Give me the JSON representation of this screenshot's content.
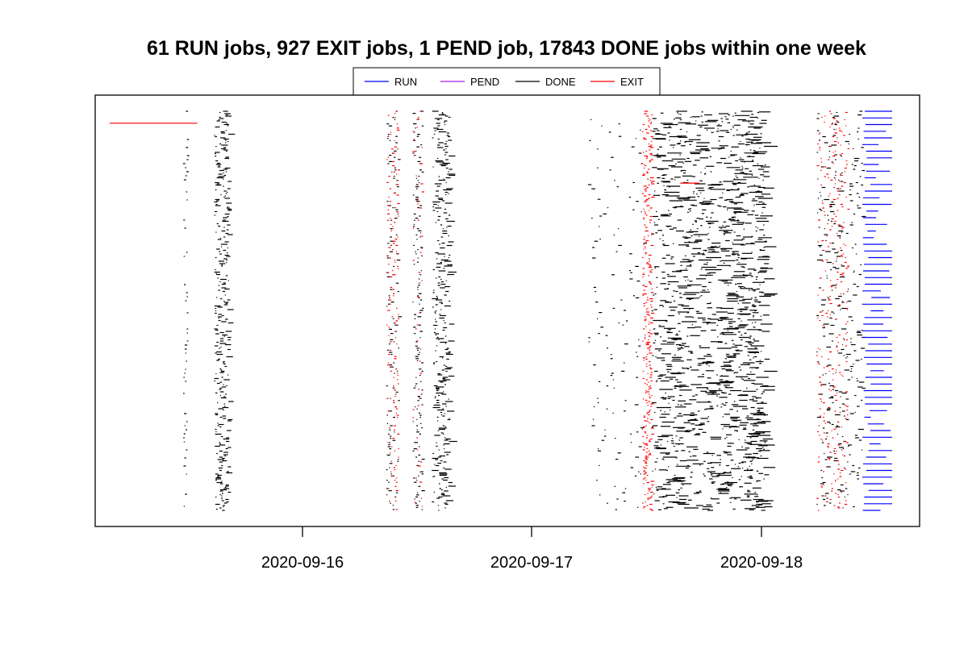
{
  "chart_data": {
    "type": "timeline",
    "title": "61 RUN jobs, 927 EXIT jobs, 1 PEND job, 17843 DONE jobs within one week",
    "xlabel": "",
    "ylabel": "",
    "x_axis": {
      "type": "date",
      "range": [
        "2020-09-15T00:00",
        "2020-09-18T17:50"
      ],
      "ticks": [
        "2020-09-16",
        "2020-09-17",
        "2020-09-18"
      ]
    },
    "grid": false,
    "legend": {
      "placement": "top-center",
      "entries": [
        {
          "label": "RUN",
          "color": "#0000ff"
        },
        {
          "label": "PEND",
          "color": "#a020f0"
        },
        {
          "label": "DONE",
          "color": "#000000"
        },
        {
          "label": "EXIT",
          "color": "#ff0000"
        }
      ]
    },
    "counts": {
      "RUN": 61,
      "EXIT": 927,
      "PEND": 1,
      "DONE": 17843
    },
    "highlighted_jobs": [
      {
        "status": "EXIT",
        "start": "2020-09-15T03:50",
        "end": "2020-09-15T13:00",
        "row": 0.03
      },
      {
        "status": "EXIT",
        "start": "2020-09-17T15:30",
        "end": "2020-09-17T17:30",
        "row": 0.18
      }
    ],
    "activity_bands": [
      {
        "status": "DONE",
        "start": "2020-09-15T11:30",
        "end": "2020-09-15T11:55",
        "density": "sparse",
        "max_duration_h": 0.2
      },
      {
        "status": "DONE",
        "start": "2020-09-15T14:45",
        "end": "2020-09-15T16:15",
        "density": "dense",
        "max_duration_h": 0.6
      },
      {
        "status": "DONE",
        "start": "2020-09-16T08:45",
        "end": "2020-09-16T10:00",
        "density": "medium",
        "max_duration_h": 0.3
      },
      {
        "status": "EXIT",
        "start": "2020-09-16T08:45",
        "end": "2020-09-16T10:00",
        "density": "medium",
        "max_duration_h": 0.2
      },
      {
        "status": "DONE",
        "start": "2020-09-16T11:30",
        "end": "2020-09-16T12:30",
        "density": "medium",
        "max_duration_h": 0.3
      },
      {
        "status": "EXIT",
        "start": "2020-09-16T11:30",
        "end": "2020-09-16T12:30",
        "density": "sparse",
        "max_duration_h": 0.2
      },
      {
        "status": "DONE",
        "start": "2020-09-16T13:30",
        "end": "2020-09-16T15:20",
        "density": "dense",
        "max_duration_h": 0.8
      },
      {
        "status": "DONE",
        "start": "2020-09-17T05:45",
        "end": "2020-09-17T11:40",
        "density": "medium",
        "max_duration_h": 0.3
      },
      {
        "status": "EXIT",
        "start": "2020-09-17T11:30",
        "end": "2020-09-17T12:30",
        "density": "dense",
        "max_duration_h": 0.3
      },
      {
        "status": "DONE",
        "start": "2020-09-17T12:30",
        "end": "2020-09-17T18:50",
        "density": "very-dense",
        "max_duration_h": 1.5
      },
      {
        "status": "DONE",
        "start": "2020-09-17T19:15",
        "end": "2020-09-18T00:20",
        "density": "very-dense",
        "max_duration_h": 1.5
      },
      {
        "status": "DONE",
        "start": "2020-09-18T05:45",
        "end": "2020-09-18T10:30",
        "density": "dense",
        "max_duration_h": 0.5
      },
      {
        "status": "EXIT",
        "start": "2020-09-18T05:45",
        "end": "2020-09-18T09:00",
        "density": "dense",
        "max_duration_h": 0.2
      }
    ],
    "run_jobs": {
      "status": "RUN",
      "start_range": [
        "2020-09-18T10:30",
        "2020-09-18T11:30"
      ],
      "end": "2020-09-18T13:40"
    }
  }
}
